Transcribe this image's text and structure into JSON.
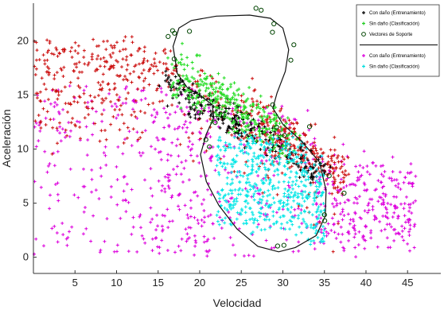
{
  "chart_data": {
    "type": "scatter",
    "title": "",
    "xlabel": "Velocidad",
    "ylabel": "Aceleración",
    "xlim": [
      0,
      49
    ],
    "ylim": [
      -1.5,
      23.5
    ],
    "xticks": [
      5,
      10,
      15,
      20,
      25,
      30,
      35,
      40,
      45
    ],
    "yticks": [
      0,
      5,
      10,
      15,
      20
    ],
    "grid": false,
    "legend_position": "top-right",
    "legend_entries": [
      {
        "label": "Con daño (Entrenamiento)",
        "marker": "+",
        "color": "#000000"
      },
      {
        "label": "Sin daño (Clasificación)",
        "marker": "+",
        "color": "#22cc22"
      },
      {
        "label": "Vectores de Soporte",
        "marker": "o",
        "color": "#004400"
      },
      {
        "label": "",
        "marker": "line",
        "color": "#000000"
      },
      {
        "label": "Con daño (Entrenamiento)",
        "marker": "+",
        "color": "#dd00dd"
      },
      {
        "label": "Sin daño (Clasificación)",
        "marker": "+",
        "color": "#00dddd"
      }
    ],
    "series": [
      {
        "name": "Con daño (Entrenamiento)",
        "role": "red-cloud",
        "color": "#cc1111",
        "marker": "+",
        "count": 650,
        "approx_region": "band from (0,20) to (37,8), dense along the upper diagonal"
      },
      {
        "name": "Sin daño (Clasificación)",
        "role": "green",
        "color": "#22dd22",
        "marker": "+",
        "count": 320,
        "approx_region": "diagonal band from (17,17) to (31,11)"
      },
      {
        "name": "Con daño (Entrenamiento)",
        "role": "black",
        "color": "#000000",
        "marker": "+",
        "count": 280,
        "approx_region": "diagonal band from (16,16) to (35,8)"
      },
      {
        "name": "Con daño (Entrenamiento)",
        "role": "magenta",
        "color": "#dd00dd",
        "marker": "+",
        "count": 800,
        "approx_region": "broad region x 0-49, y 0-18, densest lower right 35-45"
      },
      {
        "name": "Sin daño (Clasificación)",
        "role": "cyan",
        "color": "#00e6e6",
        "marker": "+",
        "count": 520,
        "approx_region": "blob x 22-35, y 3-11"
      },
      {
        "name": "Vectores de Soporte",
        "role": "sv",
        "color": "#004400",
        "marker": "o",
        "count": 26,
        "approx_region": "scattered along the decision boundary"
      }
    ],
    "boundary": {
      "name": "decision boundary",
      "points": [
        [
          16.8,
          19.5
        ],
        [
          17.5,
          21.2
        ],
        [
          19,
          21.9
        ],
        [
          22,
          22.3
        ],
        [
          26,
          22.4
        ],
        [
          28.5,
          22.1
        ],
        [
          30,
          21.2
        ],
        [
          30.7,
          19.2
        ],
        [
          30.3,
          17.2
        ],
        [
          29.3,
          15.2
        ],
        [
          28.8,
          13.8
        ],
        [
          30,
          12.3
        ],
        [
          32.3,
          10.7
        ],
        [
          34.4,
          8.8
        ],
        [
          35.2,
          6.2
        ],
        [
          35.1,
          3.8
        ],
        [
          34,
          2.0
        ],
        [
          31.5,
          0.9
        ],
        [
          29.5,
          0.5
        ],
        [
          27,
          1.0
        ],
        [
          24.5,
          2.6
        ],
        [
          22.3,
          4.8
        ],
        [
          20.8,
          7.0
        ],
        [
          20.1,
          9.5
        ],
        [
          20.8,
          11.4
        ],
        [
          21.7,
          12.9
        ],
        [
          21.5,
          14.1
        ],
        [
          20,
          15.0
        ],
        [
          18.5,
          15.7
        ],
        [
          17.3,
          17.0
        ],
        [
          16.8,
          19.5
        ]
      ]
    }
  }
}
